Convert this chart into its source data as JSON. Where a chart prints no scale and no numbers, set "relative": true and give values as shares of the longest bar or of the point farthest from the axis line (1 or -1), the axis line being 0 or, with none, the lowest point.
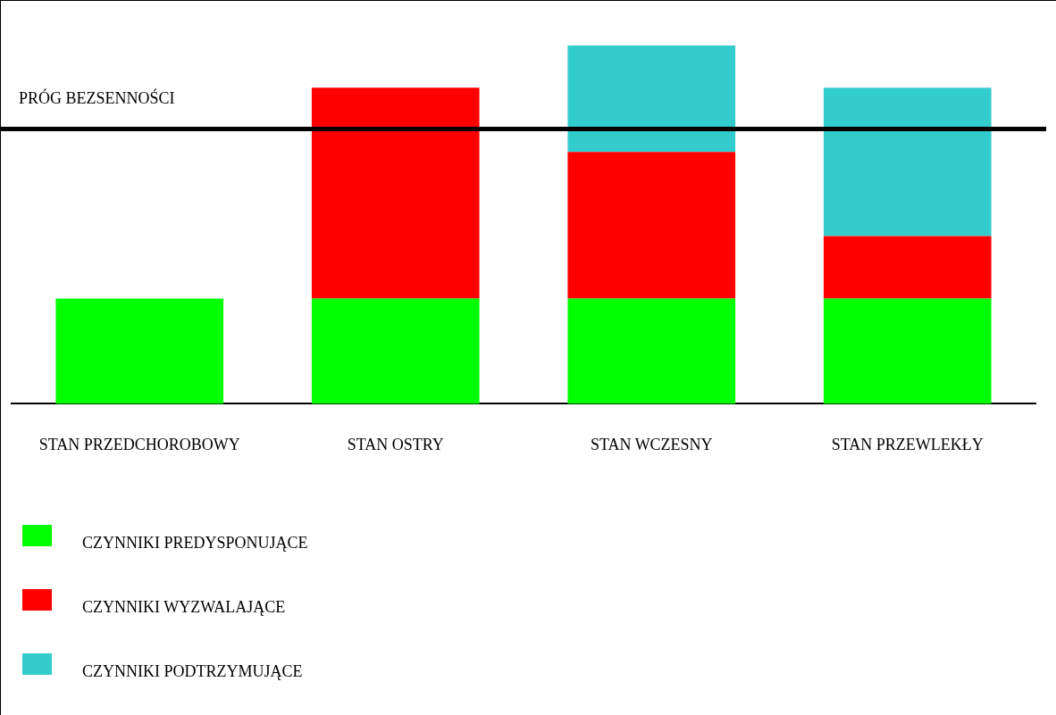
{
  "chart_data": {
    "type": "bar",
    "stacked": true,
    "relative": true,
    "categories": [
      "STAN PRZEDCHOROBOWY",
      "STAN OSTRY",
      "STAN WCZESNY",
      "STAN PRZEWLEKŁY"
    ],
    "series": [
      {
        "name": "CZYNNIKI  PREDYSPONUJĄCE",
        "color": "#00ff00",
        "values": [
          0.294,
          0.294,
          0.294,
          0.294
        ]
      },
      {
        "name": "CZYNNIKI  WYZWALAJĄCE",
        "color": "#ff0000",
        "values": [
          null,
          0.588,
          0.409,
          0.174
        ]
      },
      {
        "name": "CZYNNIKI  PODTRZYMUJĄCE",
        "color": "#33cccc",
        "values": [
          null,
          null,
          0.297,
          0.414
        ]
      }
    ],
    "ref_lines": [
      {
        "axis": "y",
        "value": 0.767,
        "label": "PRÓG BEZSENNOŚCI",
        "color": "#000000"
      }
    ],
    "grid": false,
    "legend": "bottom left"
  }
}
